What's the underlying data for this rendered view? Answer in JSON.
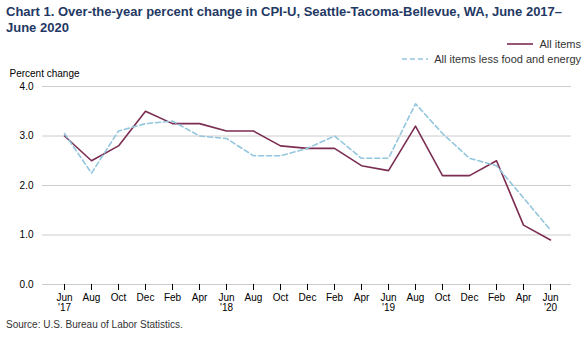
{
  "chart_data": {
    "type": "line",
    "title": "Chart 1. Over-the-year percent change in CPI-U, Seattle-Tacoma-Bellevue, WA, June 2017–June 2020",
    "ylabel": "Percent change",
    "source": "Source: U.S. Bureau of Labor Statistics.",
    "categories": [
      "Jun\n'17",
      "Aug",
      "Oct",
      "Dec",
      "Feb",
      "Apr",
      "Jun\n'18",
      "Aug",
      "Oct",
      "Dec",
      "Feb",
      "Apr",
      "Jun\n'19",
      "Aug",
      "Oct",
      "Dec",
      "Feb",
      "Apr",
      "Jun\n'20"
    ],
    "series": [
      {
        "name": "All items",
        "color": "#7B2D52",
        "line_style": "solid",
        "values": [
          3.0,
          2.5,
          2.8,
          3.5,
          3.25,
          3.25,
          3.1,
          3.1,
          2.8,
          2.75,
          2.75,
          2.4,
          2.3,
          3.2,
          2.2,
          2.2,
          2.5,
          1.2,
          0.9
        ]
      },
      {
        "name": "All items less food and energy",
        "color": "#92C5DE",
        "line_style": "dashed",
        "values": [
          3.05,
          2.25,
          3.1,
          3.25,
          3.3,
          3.0,
          2.95,
          2.6,
          2.6,
          2.75,
          3.0,
          2.55,
          2.55,
          3.65,
          3.05,
          2.55,
          2.4,
          1.75,
          1.1
        ]
      }
    ],
    "ylim": [
      0.0,
      4.0
    ],
    "yticks": [
      {
        "value": 0.0,
        "label": "0.0"
      },
      {
        "value": 1.0,
        "label": "1.0"
      },
      {
        "value": 2.0,
        "label": "2.0"
      },
      {
        "value": 3.0,
        "label": "3.0"
      },
      {
        "value": 4.0,
        "label": "4.0"
      }
    ],
    "grid": true,
    "legend": "upper right"
  }
}
